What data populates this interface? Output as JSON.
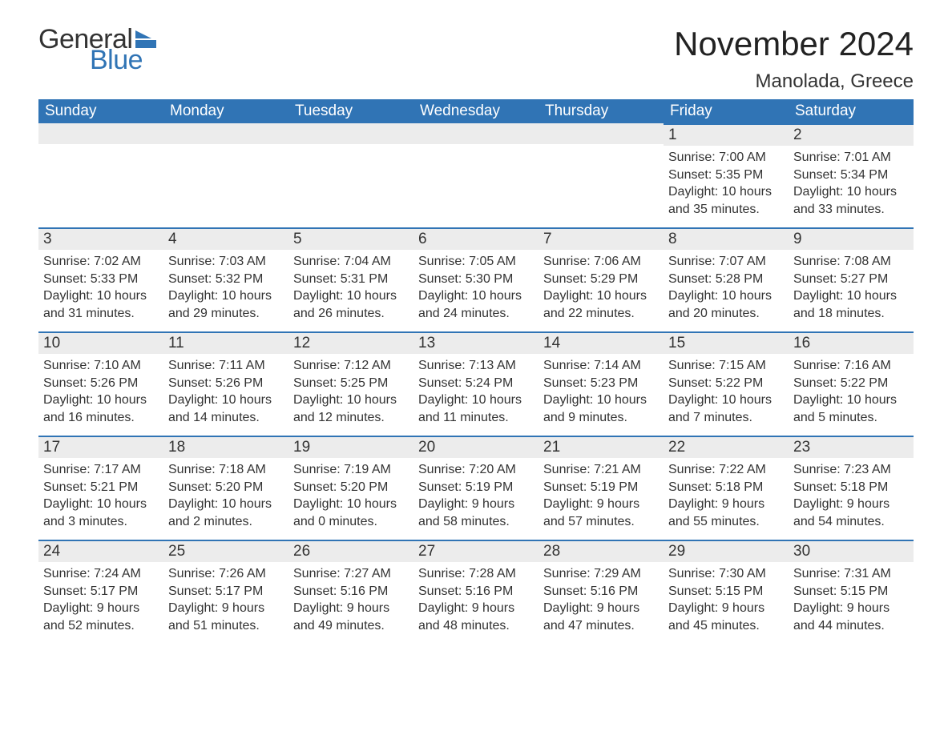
{
  "logo": {
    "text_general": "General",
    "text_blue": "Blue",
    "flag_color": "#3074b5"
  },
  "title": "November 2024",
  "location": "Manolada, Greece",
  "colors": {
    "header_bg": "#3074b5",
    "header_text": "#ffffff",
    "daynum_bg": "#ececec",
    "row_border": "#3074b5",
    "body_bg": "#ffffff",
    "text": "#333333"
  },
  "font": {
    "family": "Arial",
    "title_size_pt": 32,
    "location_size_pt": 18,
    "header_size_pt": 14,
    "daynum_size_pt": 14,
    "body_size_pt": 12
  },
  "day_headers": [
    "Sunday",
    "Monday",
    "Tuesday",
    "Wednesday",
    "Thursday",
    "Friday",
    "Saturday"
  ],
  "weeks": [
    [
      null,
      null,
      null,
      null,
      null,
      {
        "n": "1",
        "sunrise": "7:00 AM",
        "sunset": "5:35 PM",
        "daylight": "10 hours and 35 minutes."
      },
      {
        "n": "2",
        "sunrise": "7:01 AM",
        "sunset": "5:34 PM",
        "daylight": "10 hours and 33 minutes."
      }
    ],
    [
      {
        "n": "3",
        "sunrise": "7:02 AM",
        "sunset": "5:33 PM",
        "daylight": "10 hours and 31 minutes."
      },
      {
        "n": "4",
        "sunrise": "7:03 AM",
        "sunset": "5:32 PM",
        "daylight": "10 hours and 29 minutes."
      },
      {
        "n": "5",
        "sunrise": "7:04 AM",
        "sunset": "5:31 PM",
        "daylight": "10 hours and 26 minutes."
      },
      {
        "n": "6",
        "sunrise": "7:05 AM",
        "sunset": "5:30 PM",
        "daylight": "10 hours and 24 minutes."
      },
      {
        "n": "7",
        "sunrise": "7:06 AM",
        "sunset": "5:29 PM",
        "daylight": "10 hours and 22 minutes."
      },
      {
        "n": "8",
        "sunrise": "7:07 AM",
        "sunset": "5:28 PM",
        "daylight": "10 hours and 20 minutes."
      },
      {
        "n": "9",
        "sunrise": "7:08 AM",
        "sunset": "5:27 PM",
        "daylight": "10 hours and 18 minutes."
      }
    ],
    [
      {
        "n": "10",
        "sunrise": "7:10 AM",
        "sunset": "5:26 PM",
        "daylight": "10 hours and 16 minutes."
      },
      {
        "n": "11",
        "sunrise": "7:11 AM",
        "sunset": "5:26 PM",
        "daylight": "10 hours and 14 minutes."
      },
      {
        "n": "12",
        "sunrise": "7:12 AM",
        "sunset": "5:25 PM",
        "daylight": "10 hours and 12 minutes."
      },
      {
        "n": "13",
        "sunrise": "7:13 AM",
        "sunset": "5:24 PM",
        "daylight": "10 hours and 11 minutes."
      },
      {
        "n": "14",
        "sunrise": "7:14 AM",
        "sunset": "5:23 PM",
        "daylight": "10 hours and 9 minutes."
      },
      {
        "n": "15",
        "sunrise": "7:15 AM",
        "sunset": "5:22 PM",
        "daylight": "10 hours and 7 minutes."
      },
      {
        "n": "16",
        "sunrise": "7:16 AM",
        "sunset": "5:22 PM",
        "daylight": "10 hours and 5 minutes."
      }
    ],
    [
      {
        "n": "17",
        "sunrise": "7:17 AM",
        "sunset": "5:21 PM",
        "daylight": "10 hours and 3 minutes."
      },
      {
        "n": "18",
        "sunrise": "7:18 AM",
        "sunset": "5:20 PM",
        "daylight": "10 hours and 2 minutes."
      },
      {
        "n": "19",
        "sunrise": "7:19 AM",
        "sunset": "5:20 PM",
        "daylight": "10 hours and 0 minutes."
      },
      {
        "n": "20",
        "sunrise": "7:20 AM",
        "sunset": "5:19 PM",
        "daylight": "9 hours and 58 minutes."
      },
      {
        "n": "21",
        "sunrise": "7:21 AM",
        "sunset": "5:19 PM",
        "daylight": "9 hours and 57 minutes."
      },
      {
        "n": "22",
        "sunrise": "7:22 AM",
        "sunset": "5:18 PM",
        "daylight": "9 hours and 55 minutes."
      },
      {
        "n": "23",
        "sunrise": "7:23 AM",
        "sunset": "5:18 PM",
        "daylight": "9 hours and 54 minutes."
      }
    ],
    [
      {
        "n": "24",
        "sunrise": "7:24 AM",
        "sunset": "5:17 PM",
        "daylight": "9 hours and 52 minutes."
      },
      {
        "n": "25",
        "sunrise": "7:26 AM",
        "sunset": "5:17 PM",
        "daylight": "9 hours and 51 minutes."
      },
      {
        "n": "26",
        "sunrise": "7:27 AM",
        "sunset": "5:16 PM",
        "daylight": "9 hours and 49 minutes."
      },
      {
        "n": "27",
        "sunrise": "7:28 AM",
        "sunset": "5:16 PM",
        "daylight": "9 hours and 48 minutes."
      },
      {
        "n": "28",
        "sunrise": "7:29 AM",
        "sunset": "5:16 PM",
        "daylight": "9 hours and 47 minutes."
      },
      {
        "n": "29",
        "sunrise": "7:30 AM",
        "sunset": "5:15 PM",
        "daylight": "9 hours and 45 minutes."
      },
      {
        "n": "30",
        "sunrise": "7:31 AM",
        "sunset": "5:15 PM",
        "daylight": "9 hours and 44 minutes."
      }
    ]
  ],
  "labels": {
    "sunrise_prefix": "Sunrise: ",
    "sunset_prefix": "Sunset: ",
    "daylight_prefix": "Daylight: "
  }
}
